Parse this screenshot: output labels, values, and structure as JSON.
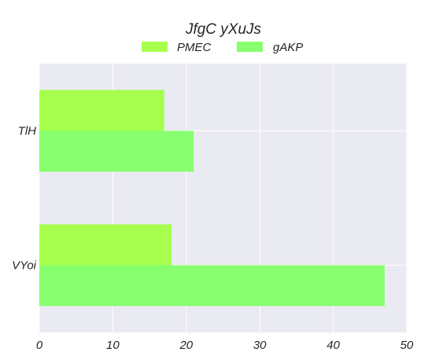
{
  "chart_data": {
    "type": "bar",
    "orientation": "horizontal",
    "title": "JfgC yXuJs",
    "categories": [
      "TlH",
      "VYoi"
    ],
    "series": [
      {
        "name": "PMEC",
        "values": [
          17,
          18
        ],
        "color": "#a6ff4d"
      },
      {
        "name": "gAKP",
        "values": [
          21,
          47
        ],
        "color": "#88ff6e"
      }
    ],
    "xlabel": "",
    "ylabel": "",
    "xlim": [
      0,
      50
    ],
    "xticks": [
      0,
      10,
      20,
      30,
      40,
      50
    ],
    "grid": true,
    "legend": "top-center",
    "plot_background": "#eaeaf2"
  }
}
